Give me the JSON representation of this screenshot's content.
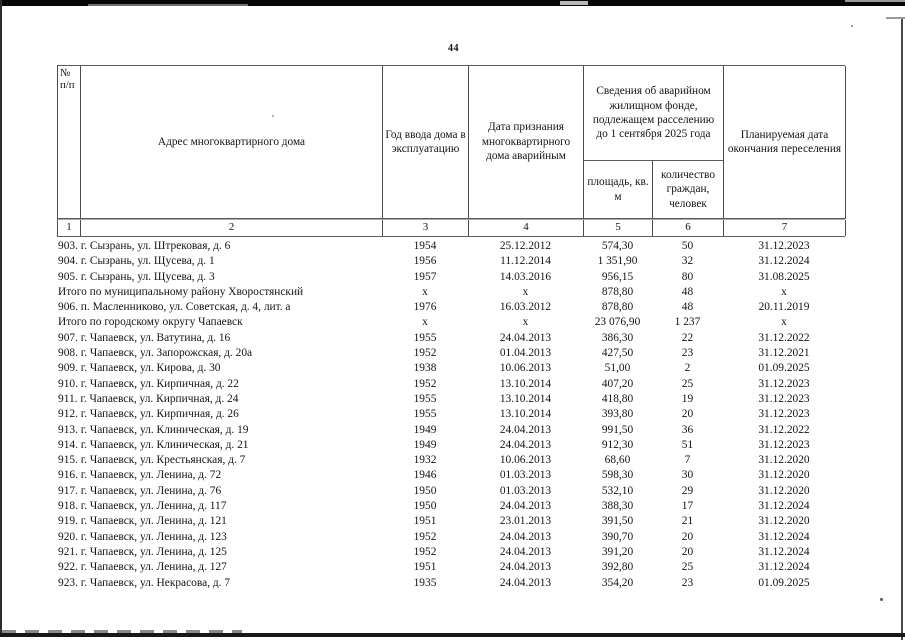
{
  "page": {
    "number": "44"
  },
  "table": {
    "headers": {
      "num": "№ п/п",
      "address": "Адрес многоквартирного дома",
      "year": "Год ввода дома в эксплуатацию",
      "date_recognized": "Дата признания многоквартирного дома аварийным",
      "fund_group": "Сведения об аварийном жилищном фонде, подлежащем расселению до 1 сентября 2025 года",
      "area": "площадь, кв. м",
      "citizens": "количество граждан, человек",
      "planned_date": "Планируемая дата окончания переселения"
    },
    "col_numbers": [
      "1",
      "2",
      "3",
      "4",
      "5",
      "6",
      "7"
    ],
    "rows": [
      [
        "903. г. Сызрань, ул. Штрековая, д. 6",
        "1954",
        "25.12.2012",
        "574,30",
        "50",
        "31.12.2023"
      ],
      [
        "904. г. Сызрань, ул. Щусева, д. 1",
        "1956",
        "11.12.2014",
        "1 351,90",
        "32",
        "31.12.2024"
      ],
      [
        "905. г. Сызрань, ул. Щусева, д. 3",
        "1957",
        "14.03.2016",
        "956,15",
        "80",
        "31.08.2025"
      ],
      [
        "Итого по муниципальному району Хворостянский",
        "x",
        "x",
        "878,80",
        "48",
        "x"
      ],
      [
        "906. п. Масленниково, ул. Советская, д. 4, лит. а",
        "1976",
        "16.03.2012",
        "878,80",
        "48",
        "20.11.2019"
      ],
      [
        "Итого по городскому округу Чапаевск",
        "x",
        "x",
        "23 076,90",
        "1 237",
        "x"
      ],
      [
        "907. г. Чапаевск, ул. Ватутина, д. 16",
        "1955",
        "24.04.2013",
        "386,30",
        "22",
        "31.12.2022"
      ],
      [
        "908. г. Чапаевск, ул. Запорожская, д. 20а",
        "1952",
        "01.04.2013",
        "427,50",
        "23",
        "31.12.2021"
      ],
      [
        "909. г. Чапаевск, ул. Кирова, д. 30",
        "1938",
        "10.06.2013",
        "51,00",
        "2",
        "01.09.2025"
      ],
      [
        "910. г. Чапаевск, ул. Кирпичная, д. 22",
        "1952",
        "13.10.2014",
        "407,20",
        "25",
        "31.12.2023"
      ],
      [
        "911. г. Чапаевск, ул. Кирпичная, д. 24",
        "1955",
        "13.10.2014",
        "418,80",
        "19",
        "31.12.2023"
      ],
      [
        "912. г. Чапаевск, ул. Кирпичная, д. 26",
        "1955",
        "13.10.2014",
        "393,80",
        "20",
        "31.12.2023"
      ],
      [
        "913. г. Чапаевск, ул. Клиническая, д. 19",
        "1949",
        "24.04.2013",
        "991,50",
        "36",
        "31.12.2022"
      ],
      [
        "914. г. Чапаевск, ул. Клиническая, д. 21",
        "1949",
        "24.04.2013",
        "912,30",
        "51",
        "31.12.2023"
      ],
      [
        "915. г. Чапаевск, ул. Крестьянская, д. 7",
        "1932",
        "10.06.2013",
        "68,60",
        "7",
        "31.12.2020"
      ],
      [
        "916. г. Чапаевск, ул. Ленина, д. 72",
        "1946",
        "01.03.2013",
        "598,30",
        "30",
        "31.12.2020"
      ],
      [
        "917. г. Чапаевск, ул. Ленина, д. 76",
        "1950",
        "01.03.2013",
        "532,10",
        "29",
        "31.12.2020"
      ],
      [
        "918. г. Чапаевск, ул. Ленина, д. 117",
        "1950",
        "24.04.2013",
        "388,30",
        "17",
        "31.12.2024"
      ],
      [
        "919. г. Чапаевск, ул. Ленина, д. 121",
        "1951",
        "23.01.2013",
        "391,50",
        "21",
        "31.12.2020"
      ],
      [
        "920. г. Чапаевск, ул. Ленина, д. 123",
        "1952",
        "24.04.2013",
        "390,70",
        "20",
        "31.12.2024"
      ],
      [
        "921. г. Чапаевск, ул. Ленина, д. 125",
        "1952",
        "24.04.2013",
        "391,20",
        "20",
        "31.12.2024"
      ],
      [
        "922. г. Чапаевск, ул. Ленина, д. 127",
        "1951",
        "24.04.2013",
        "392,80",
        "25",
        "31.12.2024"
      ],
      [
        "923. г. Чапаевск, ул. Некрасова, д. 7",
        "1935",
        "24.04.2013",
        "354,20",
        "23",
        "01.09.2025"
      ]
    ]
  }
}
